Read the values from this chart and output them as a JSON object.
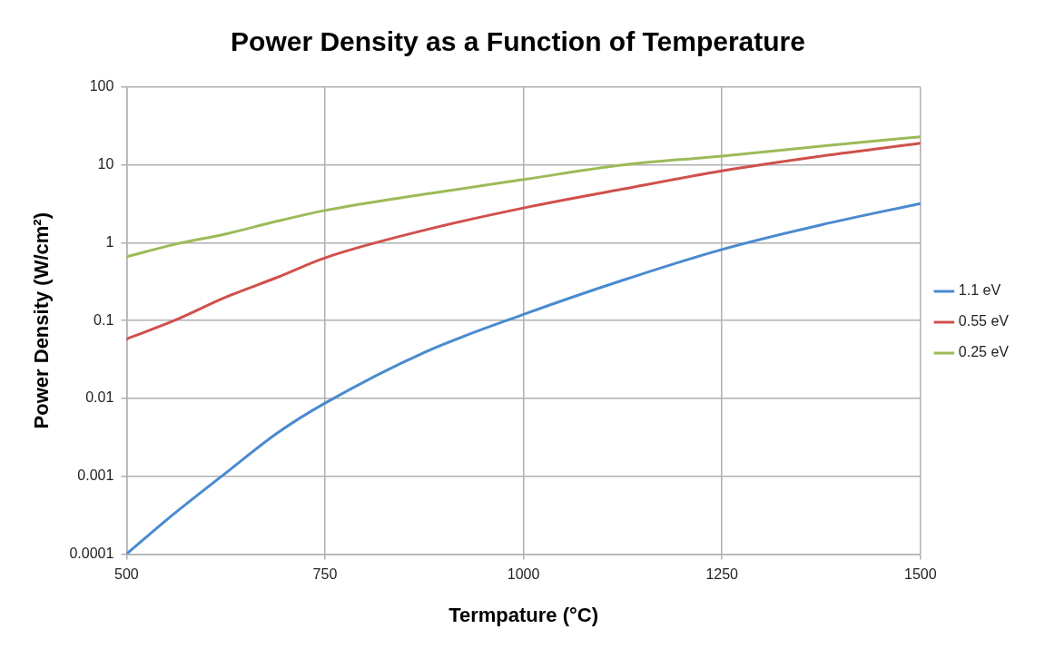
{
  "chart_data": {
    "type": "line",
    "title": "Power Density as a Function of Temperature",
    "xlabel": "Termpature (°C)",
    "ylabel": "Power Density (W/cm²)",
    "x": [
      500,
      560,
      625,
      690,
      750,
      875,
      1000,
      1125,
      1250,
      1375,
      1500
    ],
    "series": [
      {
        "name": "1.1 eV",
        "color": "#4a8ad0",
        "values": [
          0.0001,
          0.00033,
          0.0011,
          0.0036,
          0.0087,
          0.039,
          0.12,
          0.33,
          0.82,
          1.7,
          3.2
        ]
      },
      {
        "name": "0.55 eV",
        "color": "#d0504c",
        "values": [
          0.058,
          0.1,
          0.2,
          0.36,
          0.64,
          1.45,
          2.8,
          4.9,
          8.4,
          13,
          19
        ]
      },
      {
        "name": "0.25 eV",
        "color": "#9bbb59",
        "values": [
          0.66,
          0.95,
          1.3,
          1.9,
          2.6,
          4.2,
          6.5,
          10,
          13,
          17.5,
          23
        ]
      }
    ],
    "xlim": [
      500,
      1500
    ],
    "xticks": [
      500,
      750,
      1000,
      1250,
      1500
    ],
    "ylim": [
      0.0001,
      100
    ],
    "yticks": [
      0.0001,
      0.001,
      0.01,
      0.1,
      1,
      10,
      100
    ],
    "log": "y",
    "grid": true,
    "legend": "right",
    "marker": "none",
    "line_style": "solid"
  }
}
